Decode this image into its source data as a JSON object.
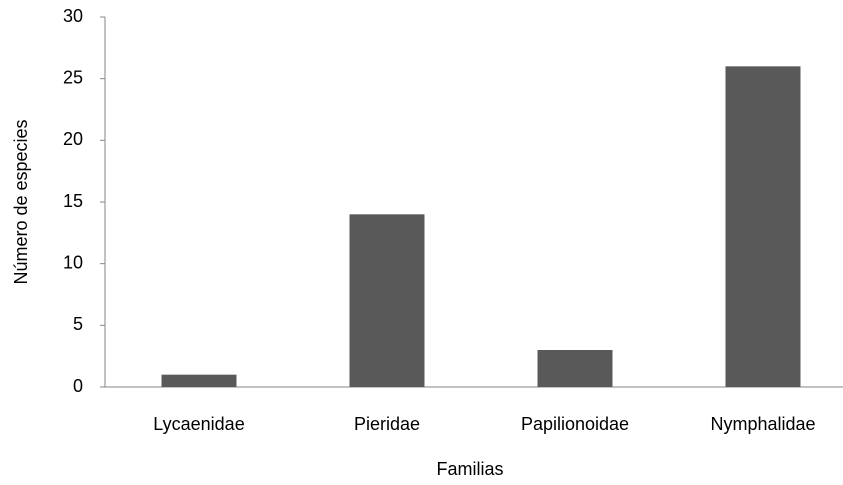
{
  "chart_data": {
    "type": "bar",
    "x_label": "Familias",
    "y_label": "Número de especies",
    "categories": [
      "Lycaenidae",
      "Pieridae",
      "Papilionoidae",
      "Nymphalidae"
    ],
    "values": [
      1,
      14,
      3,
      26
    ],
    "color": "#595959",
    "ylim": [
      0,
      30
    ],
    "yticks": [
      0,
      5,
      10,
      15,
      20,
      25,
      30
    ],
    "grid": false
  }
}
